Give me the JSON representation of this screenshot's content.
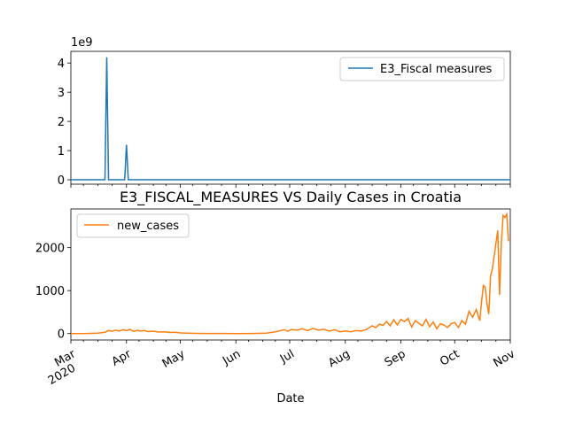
{
  "chart_data": [
    {
      "type": "line",
      "panel": "top",
      "title": "",
      "scale_label": "1e9",
      "ylim": [
        -150000000,
        4400000000
      ],
      "yticks": [
        0,
        1000000000,
        2000000000,
        3000000000,
        4000000000
      ],
      "ytick_labels": [
        "0",
        "1",
        "2",
        "3",
        "4"
      ],
      "legend_position": "upper-right",
      "series": [
        {
          "name": "E3_Fiscal measures",
          "color": "#1f77b4",
          "points": [
            [
              "2020-03-01",
              0
            ],
            [
              "2020-03-20",
              0
            ],
            [
              "2020-03-21",
              4200000000
            ],
            [
              "2020-03-22",
              0
            ],
            [
              "2020-03-31",
              0
            ],
            [
              "2020-04-01",
              1200000000
            ],
            [
              "2020-04-02",
              0
            ],
            [
              "2020-11-01",
              0
            ]
          ]
        }
      ]
    },
    {
      "type": "line",
      "panel": "bottom",
      "title": "E3_FISCAL_MEASURES VS Daily Cases in Croatia",
      "xlabel": "Date",
      "ylim": [
        -150,
        2900
      ],
      "yticks": [
        0,
        1000,
        2000
      ],
      "ytick_labels": [
        "0",
        "1000",
        "2000"
      ],
      "legend_position": "upper-left",
      "xlim": [
        "2020-03-01",
        "2020-11-01"
      ],
      "x_ticks": [
        {
          "date": "2020-03-01",
          "label": "Mar",
          "sub": "2020"
        },
        {
          "date": "2020-04-01",
          "label": "Apr",
          "sub": ""
        },
        {
          "date": "2020-05-01",
          "label": "May",
          "sub": ""
        },
        {
          "date": "2020-06-01",
          "label": "Jun",
          "sub": ""
        },
        {
          "date": "2020-07-01",
          "label": "Jul",
          "sub": ""
        },
        {
          "date": "2020-08-01",
          "label": "Aug",
          "sub": ""
        },
        {
          "date": "2020-09-01",
          "label": "Sep",
          "sub": ""
        },
        {
          "date": "2020-10-01",
          "label": "Oct",
          "sub": ""
        },
        {
          "date": "2020-11-01",
          "label": "Nov",
          "sub": ""
        }
      ],
      "series": [
        {
          "name": "new_cases",
          "color": "#ff7f0e",
          "points": [
            [
              "2020-03-01",
              0
            ],
            [
              "2020-03-10",
              2
            ],
            [
              "2020-03-16",
              10
            ],
            [
              "2020-03-20",
              30
            ],
            [
              "2020-03-22",
              70
            ],
            [
              "2020-03-24",
              55
            ],
            [
              "2020-03-26",
              80
            ],
            [
              "2020-03-28",
              60
            ],
            [
              "2020-03-30",
              90
            ],
            [
              "2020-04-01",
              70
            ],
            [
              "2020-04-03",
              95
            ],
            [
              "2020-04-05",
              50
            ],
            [
              "2020-04-07",
              75
            ],
            [
              "2020-04-09",
              60
            ],
            [
              "2020-04-11",
              70
            ],
            [
              "2020-04-13",
              45
            ],
            [
              "2020-04-16",
              55
            ],
            [
              "2020-04-19",
              35
            ],
            [
              "2020-04-22",
              40
            ],
            [
              "2020-04-25",
              25
            ],
            [
              "2020-04-28",
              30
            ],
            [
              "2020-05-01",
              15
            ],
            [
              "2020-05-05",
              10
            ],
            [
              "2020-05-10",
              5
            ],
            [
              "2020-05-15",
              3
            ],
            [
              "2020-05-20",
              2
            ],
            [
              "2020-05-25",
              1
            ],
            [
              "2020-06-01",
              0
            ],
            [
              "2020-06-10",
              2
            ],
            [
              "2020-06-18",
              10
            ],
            [
              "2020-06-23",
              40
            ],
            [
              "2020-06-26",
              70
            ],
            [
              "2020-06-28",
              90
            ],
            [
              "2020-06-30",
              55
            ],
            [
              "2020-07-02",
              95
            ],
            [
              "2020-07-05",
              80
            ],
            [
              "2020-07-08",
              110
            ],
            [
              "2020-07-11",
              70
            ],
            [
              "2020-07-14",
              120
            ],
            [
              "2020-07-17",
              80
            ],
            [
              "2020-07-20",
              100
            ],
            [
              "2020-07-23",
              60
            ],
            [
              "2020-07-26",
              90
            ],
            [
              "2020-07-29",
              40
            ],
            [
              "2020-08-01",
              60
            ],
            [
              "2020-08-04",
              40
            ],
            [
              "2020-08-07",
              70
            ],
            [
              "2020-08-10",
              60
            ],
            [
              "2020-08-13",
              100
            ],
            [
              "2020-08-16",
              180
            ],
            [
              "2020-08-18",
              140
            ],
            [
              "2020-08-20",
              220
            ],
            [
              "2020-08-22",
              190
            ],
            [
              "2020-08-24",
              280
            ],
            [
              "2020-08-26",
              180
            ],
            [
              "2020-08-28",
              320
            ],
            [
              "2020-08-30",
              200
            ],
            [
              "2020-09-01",
              330
            ],
            [
              "2020-09-03",
              280
            ],
            [
              "2020-09-05",
              350
            ],
            [
              "2020-09-07",
              150
            ],
            [
              "2020-09-09",
              300
            ],
            [
              "2020-09-11",
              240
            ],
            [
              "2020-09-13",
              180
            ],
            [
              "2020-09-15",
              330
            ],
            [
              "2020-09-17",
              160
            ],
            [
              "2020-09-19",
              270
            ],
            [
              "2020-09-21",
              110
            ],
            [
              "2020-09-23",
              230
            ],
            [
              "2020-09-25",
              200
            ],
            [
              "2020-09-27",
              140
            ],
            [
              "2020-09-29",
              230
            ],
            [
              "2020-10-01",
              260
            ],
            [
              "2020-10-03",
              140
            ],
            [
              "2020-10-05",
              300
            ],
            [
              "2020-10-07",
              220
            ],
            [
              "2020-10-09",
              520
            ],
            [
              "2020-10-11",
              380
            ],
            [
              "2020-10-13",
              560
            ],
            [
              "2020-10-15",
              300
            ],
            [
              "2020-10-16",
              750
            ],
            [
              "2020-10-17",
              1120
            ],
            [
              "2020-10-18",
              1080
            ],
            [
              "2020-10-19",
              700
            ],
            [
              "2020-10-20",
              450
            ],
            [
              "2020-10-21",
              1350
            ],
            [
              "2020-10-22",
              1500
            ],
            [
              "2020-10-24",
              2100
            ],
            [
              "2020-10-25",
              2400
            ],
            [
              "2020-10-26",
              900
            ],
            [
              "2020-10-27",
              2100
            ],
            [
              "2020-10-28",
              2750
            ],
            [
              "2020-10-29",
              2700
            ],
            [
              "2020-10-30",
              2780
            ],
            [
              "2020-10-31",
              2150
            ]
          ]
        }
      ]
    }
  ]
}
